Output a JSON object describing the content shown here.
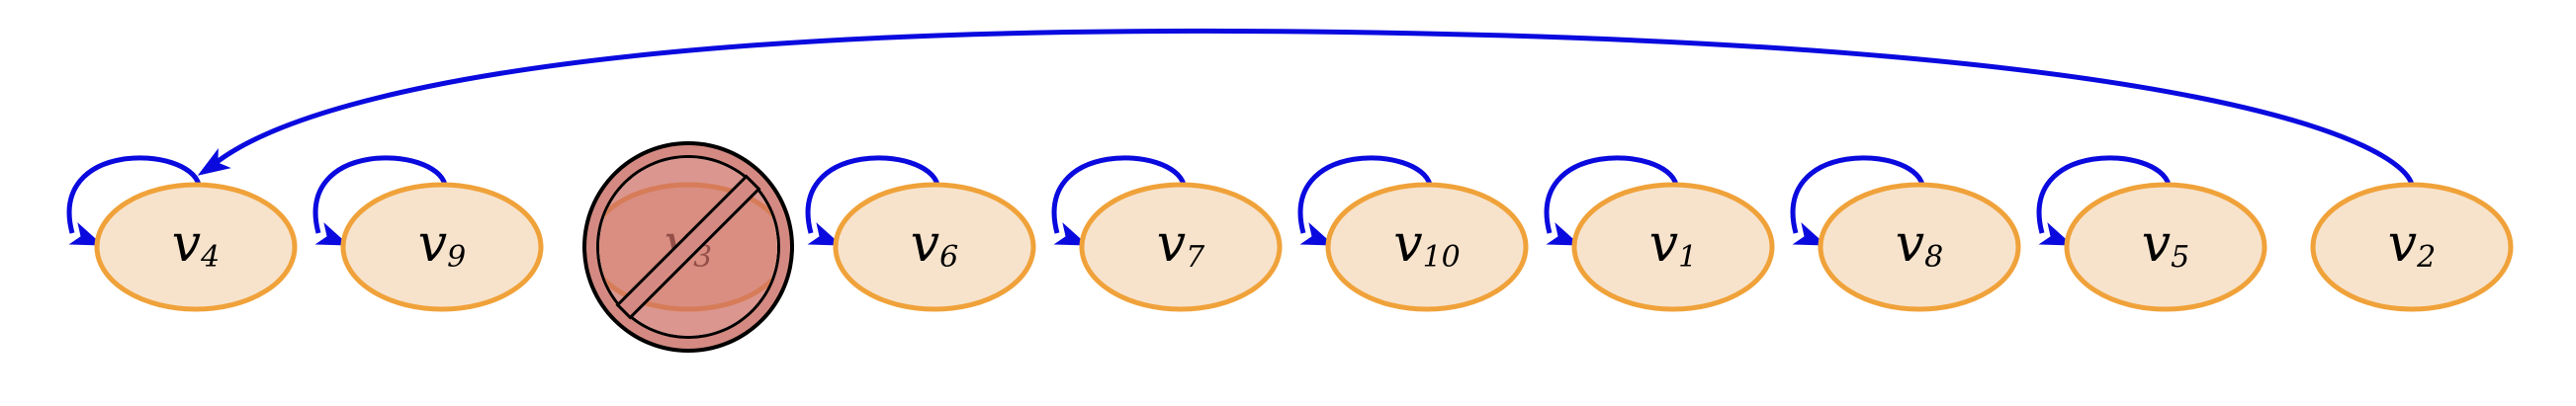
{
  "diagram": {
    "nodes": [
      {
        "id": "v4",
        "base": "v",
        "sub": "4",
        "self_loop": true,
        "blocked": false
      },
      {
        "id": "v9",
        "base": "v",
        "sub": "9",
        "self_loop": true,
        "blocked": false
      },
      {
        "id": "v3",
        "base": "v",
        "sub": "3",
        "self_loop": false,
        "blocked": true
      },
      {
        "id": "v6",
        "base": "v",
        "sub": "6",
        "self_loop": true,
        "blocked": false
      },
      {
        "id": "v7",
        "base": "v",
        "sub": "7",
        "self_loop": true,
        "blocked": false
      },
      {
        "id": "v10",
        "base": "v",
        "sub": "10",
        "self_loop": true,
        "blocked": false
      },
      {
        "id": "v1",
        "base": "v",
        "sub": "1",
        "self_loop": true,
        "blocked": false
      },
      {
        "id": "v8",
        "base": "v",
        "sub": "8",
        "self_loop": true,
        "blocked": false
      },
      {
        "id": "v5",
        "base": "v",
        "sub": "5",
        "self_loop": true,
        "blocked": false
      },
      {
        "id": "v2",
        "base": "v",
        "sub": "2",
        "self_loop": false,
        "blocked": false
      }
    ],
    "edges": [
      {
        "from": "v2",
        "to": "v4"
      }
    ],
    "colors": {
      "node_fill": "#f7e3cc",
      "node_stroke": "#f0a23a",
      "edge": "#0a0adf",
      "blocked_symbol": "#d48a82"
    }
  }
}
